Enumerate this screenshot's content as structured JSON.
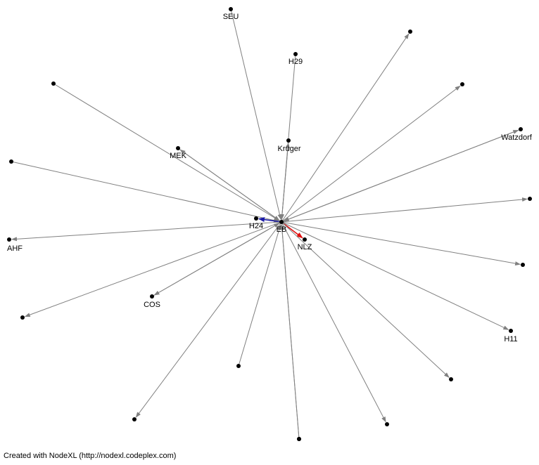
{
  "graph": {
    "hub": "EB",
    "colors": {
      "edge": "#808080",
      "node": "#000000",
      "highlight_blue": "#1a1aa6",
      "highlight_red": "#e01010"
    },
    "nodes": [
      {
        "id": "EB",
        "label": "EB"
      },
      {
        "id": "SEU",
        "label": "SEU"
      },
      {
        "id": "H29",
        "label": "H29"
      },
      {
        "id": "Kruger",
        "label": "Krüger"
      },
      {
        "id": "MEK",
        "label": "MEK"
      },
      {
        "id": "Watzdorf",
        "label": "Watzdorf"
      },
      {
        "id": "H24",
        "label": "H24"
      },
      {
        "id": "AHF",
        "label": "AHF"
      },
      {
        "id": "NLZ",
        "label": "NLZ"
      },
      {
        "id": "COS",
        "label": "COS"
      },
      {
        "id": "H11",
        "label": "H11"
      },
      {
        "id": "n1",
        "label": ""
      },
      {
        "id": "n2",
        "label": ""
      },
      {
        "id": "n3",
        "label": ""
      },
      {
        "id": "n4",
        "label": ""
      },
      {
        "id": "n5",
        "label": ""
      },
      {
        "id": "n6",
        "label": ""
      },
      {
        "id": "n7",
        "label": ""
      },
      {
        "id": "n8",
        "label": ""
      },
      {
        "id": "n9",
        "label": ""
      },
      {
        "id": "n10",
        "label": ""
      },
      {
        "id": "n11",
        "label": ""
      },
      {
        "id": "n12",
        "label": ""
      },
      {
        "id": "n13",
        "label": ""
      }
    ],
    "edges": [
      {
        "from": "SEU",
        "to": "EB",
        "color": "edge"
      },
      {
        "from": "H29",
        "to": "EB",
        "color": "edge"
      },
      {
        "from": "Kruger",
        "to": "EB",
        "color": "edge"
      },
      {
        "from": "EB",
        "to": "Kruger",
        "color": "edge"
      },
      {
        "from": "n1",
        "to": "EB",
        "color": "edge"
      },
      {
        "from": "EB",
        "to": "MEK",
        "color": "edge"
      },
      {
        "from": "MEK",
        "to": "EB",
        "color": "edge"
      },
      {
        "from": "EB",
        "to": "n2",
        "color": "edge"
      },
      {
        "from": "EB",
        "to": "n3",
        "color": "edge"
      },
      {
        "from": "EB",
        "to": "n4",
        "color": "edge"
      },
      {
        "from": "EB",
        "to": "Watzdorf",
        "color": "edge"
      },
      {
        "from": "Watzdorf",
        "to": "EB",
        "color": "edge"
      },
      {
        "from": "n5",
        "to": "EB",
        "color": "edge"
      },
      {
        "from": "EB",
        "to": "H24",
        "color": "highlight_blue"
      },
      {
        "from": "EB",
        "to": "AHF",
        "color": "edge"
      },
      {
        "from": "EB",
        "to": "NLZ",
        "color": "highlight_red"
      },
      {
        "from": "EB",
        "to": "n6",
        "color": "edge"
      },
      {
        "from": "EB",
        "to": "n7",
        "color": "edge"
      },
      {
        "from": "EB",
        "to": "COS",
        "color": "edge"
      },
      {
        "from": "COS",
        "to": "EB",
        "color": "edge"
      },
      {
        "from": "EB",
        "to": "H11",
        "color": "edge"
      },
      {
        "from": "n8",
        "to": "EB",
        "color": "edge"
      },
      {
        "from": "EB",
        "to": "n9",
        "color": "edge"
      },
      {
        "from": "EB",
        "to": "n10",
        "color": "edge"
      },
      {
        "from": "EB",
        "to": "n11",
        "color": "edge"
      },
      {
        "from": "n12",
        "to": "EB",
        "color": "edge"
      },
      {
        "from": "n13",
        "to": "EB",
        "color": "edge"
      }
    ]
  },
  "footer": {
    "text": "Created with NodeXL (http://nodexl.codeplex.com)"
  }
}
